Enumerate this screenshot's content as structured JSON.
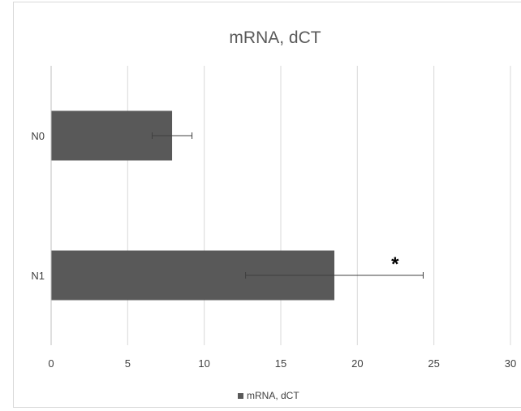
{
  "chart_data": {
    "type": "bar",
    "orientation": "horizontal",
    "title": "mRNA, dCT",
    "categories": [
      "N0",
      "N1"
    ],
    "series": [
      {
        "name": "mRNA, dCT",
        "values": [
          7.9,
          18.5
        ],
        "error": [
          1.3,
          5.8
        ],
        "color": "#595959"
      }
    ],
    "annotations": [
      {
        "category": "N1",
        "text": "*"
      }
    ],
    "xlim": [
      0,
      30
    ],
    "xticks": [
      "0",
      "5",
      "10",
      "15",
      "20",
      "25",
      "30"
    ],
    "xlabel": "",
    "ylabel": "",
    "grid": "vertical",
    "legend": "bottom"
  }
}
